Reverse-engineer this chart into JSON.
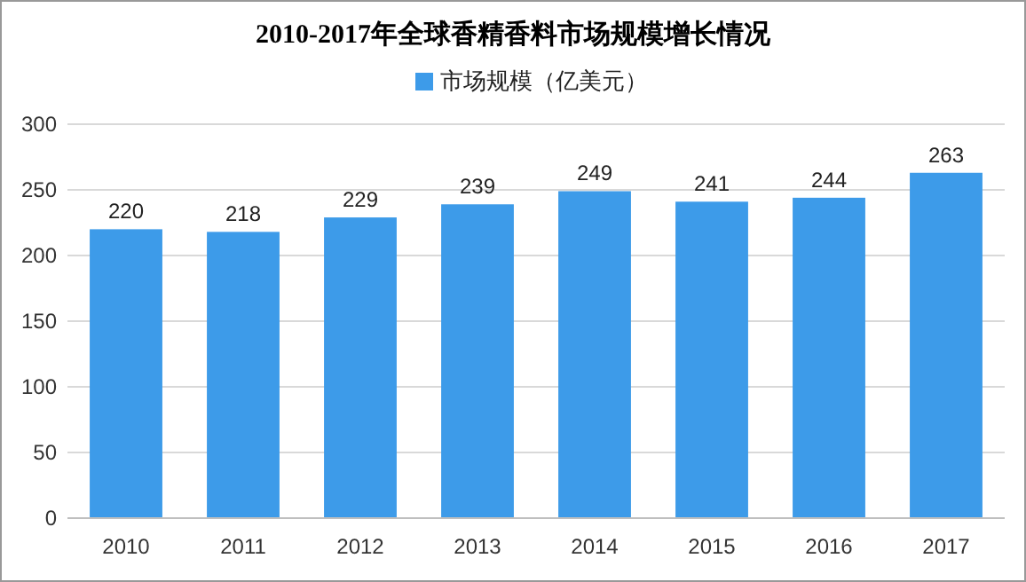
{
  "chart_data": {
    "type": "bar",
    "title": "2010-2017年全球香精香料市场规模增长情况",
    "categories": [
      "2010",
      "2011",
      "2012",
      "2013",
      "2014",
      "2015",
      "2016",
      "2017"
    ],
    "series": [
      {
        "name": "市场规模（亿美元）",
        "color": "#3d9be9",
        "values": [
          220,
          218,
          229,
          239,
          249,
          241,
          244,
          263
        ]
      }
    ],
    "ylim": [
      0,
      300
    ],
    "yticks": [
      0,
      50,
      100,
      150,
      200,
      250,
      300
    ],
    "grid": "y",
    "legend": "top",
    "data_labels": true
  }
}
